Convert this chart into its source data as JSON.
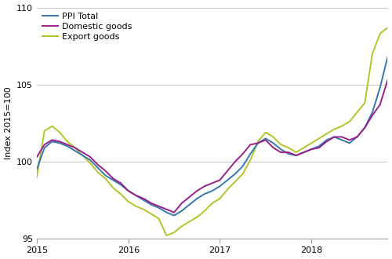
{
  "ylabel": "Index 2015=100",
  "ylim": [
    95,
    110
  ],
  "yticks": [
    95,
    100,
    105,
    110
  ],
  "colors": {
    "ppi_total": "#3577b0",
    "domestic": "#9b1f8a",
    "export": "#b5c42a"
  },
  "legend_labels": [
    "PPI Total",
    "Domestic goods",
    "Export goods"
  ],
  "ppi_total": [
    99.5,
    100.9,
    101.3,
    101.2,
    101.0,
    100.7,
    100.4,
    100.1,
    99.6,
    99.1,
    98.8,
    98.5,
    98.1,
    97.8,
    97.5,
    97.2,
    97.0,
    96.7,
    96.5,
    96.8,
    97.2,
    97.6,
    97.9,
    98.1,
    98.4,
    98.8,
    99.2,
    99.7,
    100.5,
    101.2,
    101.5,
    101.2,
    100.8,
    100.5,
    100.4,
    100.6,
    100.8,
    101.0,
    101.4,
    101.6,
    101.4,
    101.2,
    101.6,
    102.2,
    103.2,
    104.8,
    106.8
  ],
  "domestic": [
    100.3,
    101.1,
    101.4,
    101.3,
    101.1,
    100.9,
    100.6,
    100.3,
    99.8,
    99.4,
    98.9,
    98.6,
    98.1,
    97.8,
    97.6,
    97.3,
    97.1,
    96.9,
    96.7,
    97.3,
    97.7,
    98.1,
    98.4,
    98.6,
    98.8,
    99.4,
    100.0,
    100.5,
    101.1,
    101.2,
    101.4,
    100.9,
    100.6,
    100.6,
    100.4,
    100.6,
    100.8,
    100.9,
    101.3,
    101.6,
    101.6,
    101.4,
    101.6,
    102.2,
    103.0,
    103.7,
    105.3
  ],
  "export": [
    99.0,
    102.0,
    102.3,
    101.9,
    101.3,
    100.9,
    100.4,
    99.9,
    99.3,
    98.9,
    98.3,
    97.9,
    97.4,
    97.1,
    96.9,
    96.6,
    96.3,
    95.2,
    95.4,
    95.8,
    96.1,
    96.4,
    96.8,
    97.3,
    97.6,
    98.2,
    98.7,
    99.2,
    100.1,
    101.3,
    101.9,
    101.6,
    101.1,
    100.9,
    100.6,
    100.9,
    101.2,
    101.5,
    101.8,
    102.1,
    102.3,
    102.6,
    103.2,
    103.8,
    107.0,
    108.3,
    108.7
  ],
  "n_months": 47,
  "start_year": 2015,
  "start_month": 1,
  "xtick_months": [
    0,
    12,
    24,
    36
  ],
  "xtick_labels": [
    "2015",
    "2016",
    "2017",
    "2018"
  ],
  "grid_color": "#c8c8c8",
  "background_color": "#ffffff",
  "line_width": 1.4,
  "legend_fontsize": 8,
  "tick_fontsize": 8,
  "ylabel_fontsize": 8
}
